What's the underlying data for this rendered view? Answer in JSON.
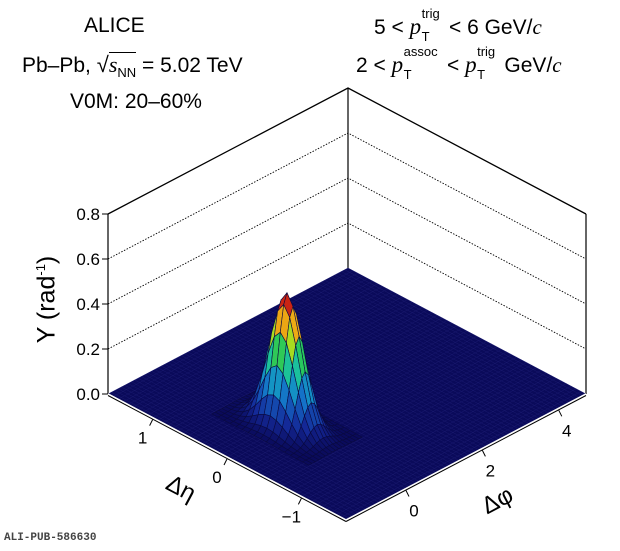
{
  "chart_data": {
    "type": "surface3d",
    "title_lines": {
      "experiment": "ALICE",
      "system": "Pb–Pb,",
      "sqrt_s_label": "s",
      "sqrt_s_sub": "NN",
      "energy": "= 5.02 TeV",
      "centrality": "V0M: 20–60%",
      "trig_range": {
        "low": "5 <",
        "p": "p",
        "sub": "T",
        "sup": "trig",
        "high": "< 6 GeV/",
        "unit_c": "c"
      },
      "assoc_range": {
        "low": "2 <",
        "p": "p",
        "sub": "T",
        "sup": "assoc",
        "mid": "<",
        "p2": "p",
        "sub2": "T",
        "sup2": "trig",
        "high": "GeV/",
        "unit_c": "c"
      }
    },
    "zlabel": "Y (rad",
    "zlabel_sup": "-1",
    "zlabel_close": ")",
    "xlabel": "Δη",
    "ylabel": "Δφ",
    "z_ticks": [
      "0.0",
      "0.2",
      "0.4",
      "0.6",
      "0.8"
    ],
    "z_tick_values": [
      0.0,
      0.2,
      0.4,
      0.6,
      0.8
    ],
    "zlim": [
      0.0,
      0.8
    ],
    "x_ticks": [
      "1",
      "0",
      "−1"
    ],
    "x_tick_values": [
      1,
      0,
      -1
    ],
    "xlim": [
      -1.6,
      1.6
    ],
    "y_ticks": [
      "0",
      "2",
      "4"
    ],
    "y_tick_values": [
      0,
      2,
      4
    ],
    "ylim": [
      -1.5708,
      4.7124
    ],
    "grid": true,
    "colormap": "rainbow (blue → cyan → green → yellow → red)",
    "floor_color": "#0a0a5a",
    "peak": {
      "delta_eta": 0.0,
      "delta_phi": 0.0,
      "height": 0.59,
      "sigma_eta": 0.2,
      "sigma_phi": 0.22
    },
    "baseline": 0.0
  },
  "footer": "ALI-PUB-586630"
}
